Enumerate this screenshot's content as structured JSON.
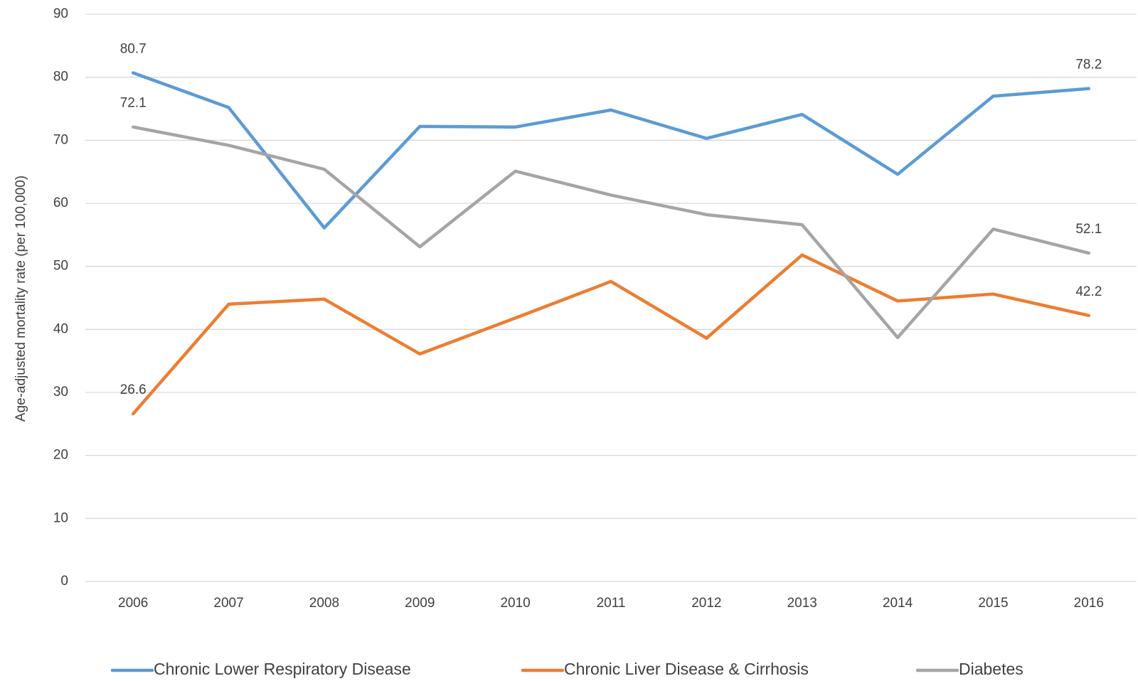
{
  "chart_data": {
    "type": "line",
    "y_label": "Age-adjusted mortality rate (per 100,000)",
    "categories": [
      "2006",
      "2007",
      "2008",
      "2009",
      "2010",
      "2011",
      "2012",
      "2013",
      "2014",
      "2015",
      "2016"
    ],
    "series": [
      {
        "name": "Chronic Lower Respiratory Disease",
        "color": "#5b9bd5",
        "values": [
          80.7,
          75.2,
          56.1,
          72.2,
          72.1,
          74.8,
          70.3,
          74.1,
          64.6,
          77.0,
          78.2
        ],
        "label_indices": [
          0,
          10
        ]
      },
      {
        "name": "Chronic Liver Disease & Cirrhosis",
        "color": "#ed7d31",
        "values": [
          26.6,
          44.0,
          44.8,
          36.1,
          41.8,
          47.6,
          38.6,
          51.8,
          44.5,
          45.6,
          42.2
        ],
        "label_indices": [
          0,
          10
        ]
      },
      {
        "name": "Diabetes",
        "color": "#a5a5a5",
        "values": [
          72.1,
          69.2,
          65.4,
          53.1,
          65.1,
          61.3,
          58.2,
          56.6,
          38.7,
          55.9,
          52.1
        ],
        "label_indices": [
          0,
          10
        ]
      }
    ],
    "ylim": [
      0,
      90
    ],
    "yticks": [
      0,
      10,
      20,
      30,
      40,
      50,
      60,
      70,
      80,
      90
    ],
    "grid": true,
    "legend": "bottom"
  }
}
